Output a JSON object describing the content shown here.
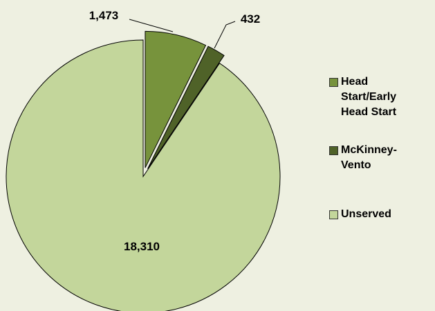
{
  "chart_data": {
    "type": "pie",
    "categories": [
      "Head Start/Early Head Start",
      "McKinney-Vento",
      "Unserved"
    ],
    "values": [
      1473,
      432,
      18310
    ],
    "value_labels": [
      "1,473",
      "432",
      "18,310"
    ],
    "colors": [
      "#77933c",
      "#4f6228",
      "#c3d69b"
    ],
    "legend": "right"
  }
}
